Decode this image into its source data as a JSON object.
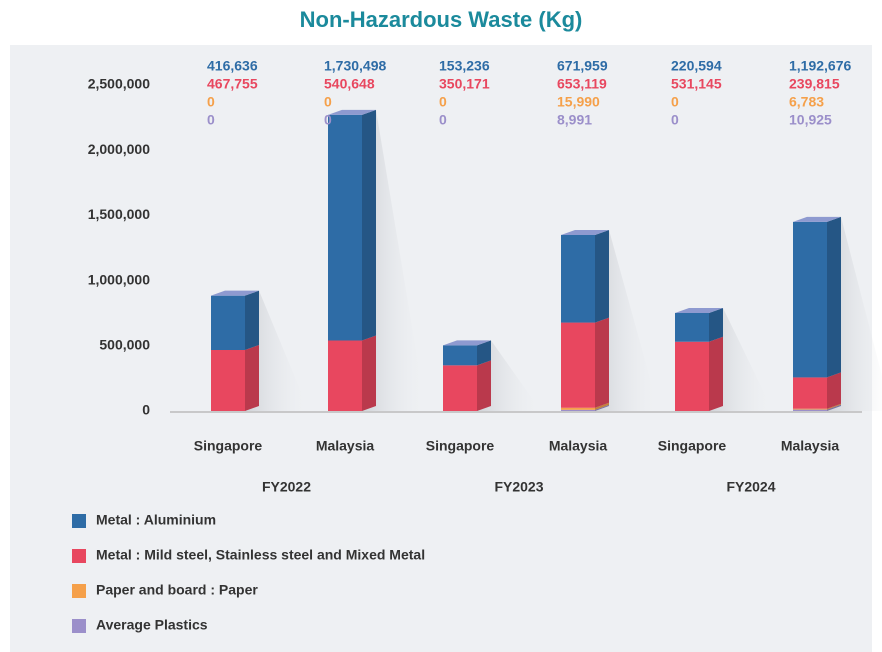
{
  "chart_data": {
    "type": "bar",
    "stacked": true,
    "title": "Non-Hazardous Waste (Kg)",
    "categories": [
      "Singapore",
      "Malaysia",
      "Singapore",
      "Malaysia",
      "Singapore",
      "Malaysia"
    ],
    "groups": [
      "FY2022",
      "FY2023",
      "FY2024"
    ],
    "series": [
      {
        "name": "Metal : Aluminium",
        "color": "#2e6ca6",
        "values": [
          416636,
          1730498,
          153236,
          671959,
          220594,
          1192676
        ],
        "value_labels": [
          "416,636",
          "1,730,498",
          "153,236",
          "671,959",
          "220,594",
          "1,192,676"
        ]
      },
      {
        "name": "Metal : Mild steel, Stainless steel and Mixed Metal",
        "color": "#e8475f",
        "values": [
          467755,
          540648,
          350171,
          653119,
          531145,
          239815
        ],
        "value_labels": [
          "467,755",
          "540,648",
          "350,171",
          "653,119",
          "531,145",
          "239,815"
        ]
      },
      {
        "name": "Paper and board : Paper",
        "color": "#f5a04a",
        "values": [
          0,
          0,
          0,
          15990,
          0,
          6783
        ],
        "value_labels": [
          "0",
          "0",
          "0",
          "15,990",
          "0",
          "6,783"
        ]
      },
      {
        "name": "Average Plastics",
        "color": "#9b8fca",
        "values": [
          0,
          0,
          0,
          8991,
          0,
          10925
        ],
        "value_labels": [
          "0",
          "0",
          "0",
          "8,991",
          "0",
          "10,925"
        ]
      }
    ],
    "ylim": [
      0,
      2500000
    ],
    "yticks": [
      0,
      {
        "value": 500000,
        "label": "500,000"
      },
      {
        "value": 1000000,
        "label": "1,000,000"
      },
      {
        "value": 1500000,
        "label": "1,500,000"
      },
      {
        "value": 2000000,
        "label": "2,000,000"
      },
      {
        "value": 2500000,
        "label": "2,500,000"
      }
    ]
  }
}
